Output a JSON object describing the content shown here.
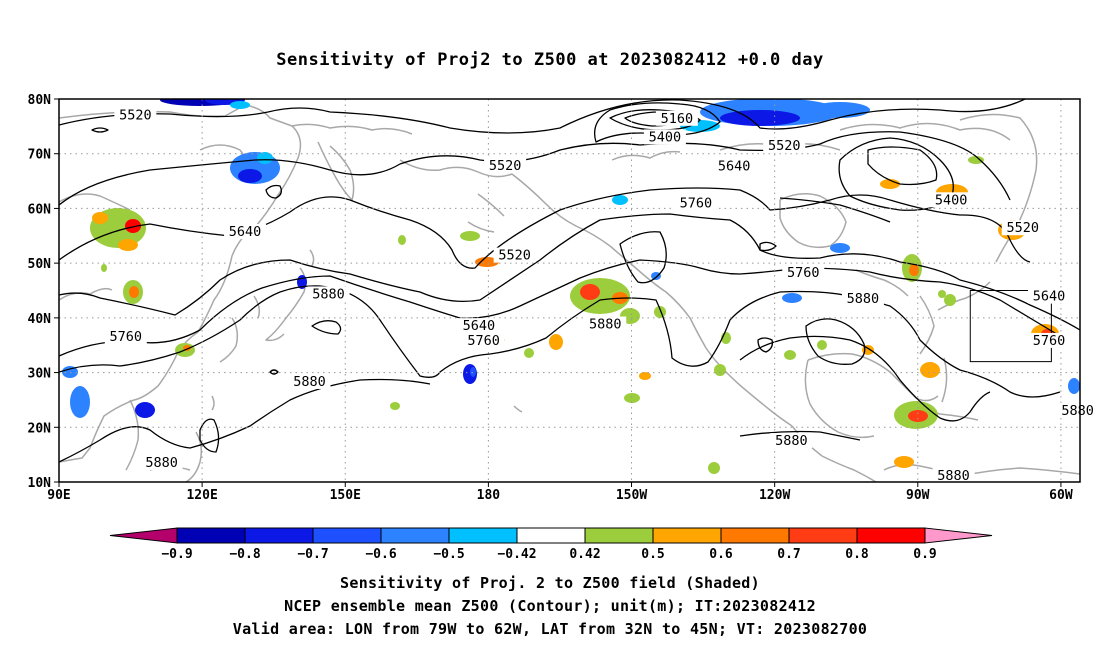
{
  "title": "Sensitivity of Proj2 to Z500 at 2023082412 +0.0 day",
  "lat_labels": [
    "80N",
    "70N",
    "60N",
    "50N",
    "40N",
    "30N",
    "20N",
    "10N"
  ],
  "lon_labels": [
    "90E",
    "120E",
    "150E",
    "180",
    "150W",
    "120W",
    "90W",
    "60W"
  ],
  "contour_labels": [
    {
      "text": "5520",
      "lon": 106,
      "lat": 76.8
    },
    {
      "text": "5160",
      "lon": -140.5,
      "lat": 76.2
    },
    {
      "text": "5400",
      "lon": -143,
      "lat": 72.8
    },
    {
      "text": "5520",
      "lon": -118,
      "lat": 71.2
    },
    {
      "text": "5520",
      "lon": 183.5,
      "lat": 67.6
    },
    {
      "text": "5640",
      "lon": -128.5,
      "lat": 67.5
    },
    {
      "text": "5760",
      "lon": -136.5,
      "lat": 60.7
    },
    {
      "text": "5400",
      "lon": -83,
      "lat": 61.3
    },
    {
      "text": "5520",
      "lon": -68,
      "lat": 56.2
    },
    {
      "text": "5640",
      "lon": 129,
      "lat": 55.5
    },
    {
      "text": "5520",
      "lon": 185.5,
      "lat": 51.2
    },
    {
      "text": "5760",
      "lon": -114,
      "lat": 48
    },
    {
      "text": "5880",
      "lon": 146.5,
      "lat": 44.1
    },
    {
      "text": "5880",
      "lon": -101.5,
      "lat": 43.3
    },
    {
      "text": "5640",
      "lon": -62.5,
      "lat": 43.7
    },
    {
      "text": "5640",
      "lon": 178,
      "lat": 38.3
    },
    {
      "text": "5880",
      "lon": -155.5,
      "lat": 38.6
    },
    {
      "text": "5760",
      "lon": 104,
      "lat": 36.3
    },
    {
      "text": "5760",
      "lon": 179,
      "lat": 35.6
    },
    {
      "text": "5760",
      "lon": -62.5,
      "lat": 35.6
    },
    {
      "text": "5880",
      "lon": 142.5,
      "lat": 28.1
    },
    {
      "text": "5880",
      "lon": -56.5,
      "lat": 22.8
    },
    {
      "text": "5880",
      "lon": -116.5,
      "lat": 17.3
    },
    {
      "text": "5880",
      "lon": 111.5,
      "lat": 13.3
    },
    {
      "text": "5880",
      "lon": -82.5,
      "lat": 10.9
    }
  ],
  "valid_area": {
    "lon_min": -79,
    "lon_max": -62,
    "lat_min": 32,
    "lat_max": 45
  },
  "colorbar": {
    "labels": [
      "−0.9",
      "−0.8",
      "−0.7",
      "−0.6",
      "−0.5",
      "−0.42",
      "0.42",
      "0.5",
      "0.6",
      "0.7",
      "0.8",
      "0.9"
    ],
    "colors": [
      "#b3006b",
      "#0000b4",
      "#0b18e6",
      "#1e50ff",
      "#2d82ff",
      "#00c0ff",
      "#ffffff",
      "#9ccd3c",
      "#ffa500",
      "#ff7800",
      "#ff3c14",
      "#ff0000",
      "#ff99cc"
    ]
  },
  "footer": {
    "line1": "Sensitivity of Proj. 2 to Z500 field (Shaded)",
    "line2": "NCEP ensemble mean Z500 (Contour); unit(m); IT:2023082412",
    "line3": "Valid area: LON from 79W to 62W, LAT from 32N to 45N; VT: 2023082700"
  }
}
